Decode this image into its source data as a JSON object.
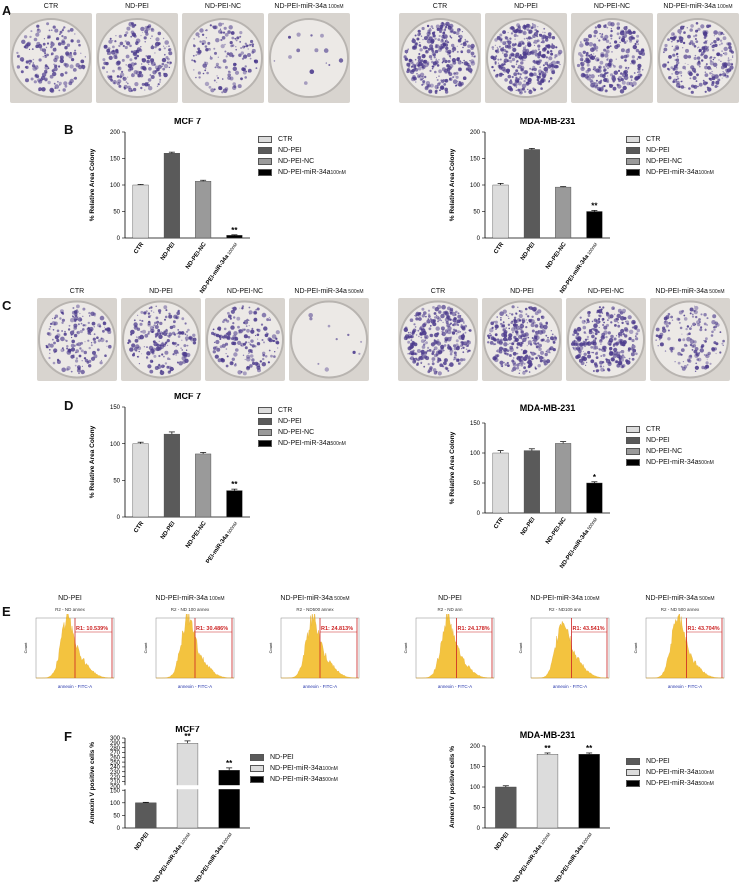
{
  "panels": {
    "A": "A",
    "B": "B",
    "C": "C",
    "D": "D",
    "E": "E",
    "F": "F"
  },
  "plate_labels": {
    "A_left": [
      "CTR",
      "ND-PEI",
      "ND-PEI-NC",
      "ND-PEI-miR-34a"
    ],
    "A_left_sub": "100nM",
    "A_right": [
      "CTR",
      "ND-PEI",
      "ND-PEI-NC",
      "ND-PEI-miR-34a"
    ],
    "A_right_sub": "100nM",
    "C_left": [
      "CTR",
      "ND-PEI",
      "ND-PEI-NC",
      "ND-PEI-miR-34a"
    ],
    "C_left_sub": "500nM",
    "C_right": [
      "CTR",
      "ND-PEI",
      "ND-PEI-NC",
      "ND-PEI-miR-34a"
    ],
    "C_right_sub": "500nM"
  },
  "colors": {
    "ctr": "#dcdcdc",
    "ndpei": "#5a5a5a",
    "ndpeinc": "#9a9a9a",
    "mir": "#000000",
    "flow_line": "#cc2222",
    "flow_hist": "#f0b000",
    "plate_stain": "#4b3a8c"
  },
  "legend": {
    "items": [
      "CTR",
      "ND-PEI",
      "ND-PEI-NC",
      "ND-PEI-miR-34a"
    ],
    "sub_100": "100nM",
    "sub_500": "500nM"
  },
  "legend_F": {
    "items": [
      "ND-PEI",
      "ND-PEI-miR-34a",
      "ND-PEI-miR-34a"
    ],
    "subs": [
      "",
      "100nM",
      "500nM"
    ]
  },
  "flow": {
    "left_titles": [
      "ND-PEI",
      "ND-PEI-miR-34a",
      "ND-PEI-miR-34a"
    ],
    "left_subs": [
      "",
      "100nM",
      "500nM"
    ],
    "left_gates": [
      "R1: 10.539%",
      "R1: 30.486%",
      "R1: 24.813%"
    ],
    "left_captions": [
      "R2 - ND annex",
      "R2 - ND 100 annex",
      "R2 - ND500 annex"
    ],
    "right_titles": [
      "ND-PEI",
      "ND-PEI-miR-34a",
      "ND-PEI-miR-34a"
    ],
    "right_subs": [
      "",
      "100nM",
      "500nM"
    ],
    "right_gates": [
      "R1: 24.178%",
      "R1: 43.541%",
      "R1: 43.704%"
    ],
    "right_captions": [
      "R2 - ND ann",
      "R2 - ND100 ann",
      "R2 - ND 500 annex"
    ],
    "xaxis": "annexin - FITC-A",
    "yaxis": "Count"
  },
  "chart_data": [
    {
      "id": "B_left",
      "type": "bar",
      "title": "MCF 7",
      "ylabel": "% Relative Area Colony",
      "categories": [
        "CTR",
        "ND-PEI",
        "ND-PEI-NC",
        "ND-PEI-miR-34a"
      ],
      "category_sub": "100nM",
      "values": [
        100,
        160,
        107,
        5
      ],
      "errors": [
        1,
        2,
        2,
        1
      ],
      "annotations": [
        "",
        "",
        "",
        "**"
      ],
      "ylim": [
        0,
        200
      ],
      "yticks": [
        0,
        50,
        100,
        150,
        200
      ]
    },
    {
      "id": "B_right",
      "type": "bar",
      "title": "MDA-MB-231",
      "ylabel": "% Relative Area Colony",
      "categories": [
        "CTR",
        "ND-PEI",
        "ND-PEI-NC",
        "ND-PEI-miR-34a"
      ],
      "category_sub": "100nM",
      "values": [
        100,
        167,
        96,
        50
      ],
      "errors": [
        3,
        2,
        1,
        2
      ],
      "annotations": [
        "",
        "",
        "",
        "**"
      ],
      "ylim": [
        0,
        200
      ],
      "yticks": [
        0,
        50,
        100,
        150,
        200
      ]
    },
    {
      "id": "D_left",
      "type": "bar",
      "title": "MCF 7",
      "ylabel": "% Relative Area Colony",
      "categories": [
        "CTR",
        "ND-PEI",
        "ND-PEI-NC",
        "ND-PEI-miR-34a"
      ],
      "category_sub": "500nM",
      "values": [
        100,
        113,
        86,
        36
      ],
      "errors": [
        2,
        3,
        2,
        2
      ],
      "annotations": [
        "",
        "",
        "",
        "**"
      ],
      "ylim": [
        0,
        150
      ],
      "yticks": [
        0,
        50,
        100,
        150
      ]
    },
    {
      "id": "D_right",
      "type": "bar",
      "title": "MDA-MB-231",
      "ylabel": "% Relative Area Colony",
      "categories": [
        "CTR",
        "ND-PEI",
        "ND-PEI-NC",
        "ND-PEI-miR-34a"
      ],
      "category_sub": "500nM",
      "values": [
        100,
        104,
        116,
        50
      ],
      "errors": [
        4,
        3,
        3,
        2
      ],
      "annotations": [
        "",
        "",
        "",
        "*"
      ],
      "ylim": [
        0,
        150
      ],
      "yticks": [
        0,
        50,
        100,
        150
      ]
    },
    {
      "id": "F_left",
      "type": "bar",
      "title": "MCF7",
      "ylabel": "Annexin V positive cells %",
      "categories": [
        "ND-PEI",
        "ND-PEI-miR-34a",
        "ND-PEI-miR-34a"
      ],
      "category_subs": [
        "",
        "100nM",
        "500nM"
      ],
      "values": [
        100,
        289,
        233
      ],
      "errors": [
        2,
        5,
        5
      ],
      "annotations": [
        "",
        "**",
        "**"
      ],
      "ylim": [
        0,
        300
      ],
      "yticks": [
        0,
        50,
        100,
        150,
        200,
        210,
        220,
        230,
        240,
        250,
        260,
        270,
        280,
        290,
        300
      ],
      "axis_break": [
        150,
        200
      ]
    },
    {
      "id": "F_right",
      "type": "bar",
      "title": "MDA-MB-231",
      "ylabel": "Annexin V positive cells %",
      "categories": [
        "ND-PEI",
        "ND-PEI-miR-34a",
        "ND-PEI-miR-34a"
      ],
      "category_subs": [
        "",
        "100nM",
        "500nM"
      ],
      "values": [
        100,
        180,
        180
      ],
      "errors": [
        3,
        3,
        3
      ],
      "annotations": [
        "",
        "**",
        "**"
      ],
      "ylim": [
        0,
        200
      ],
      "yticks": [
        0,
        50,
        100,
        150,
        200
      ]
    }
  ]
}
